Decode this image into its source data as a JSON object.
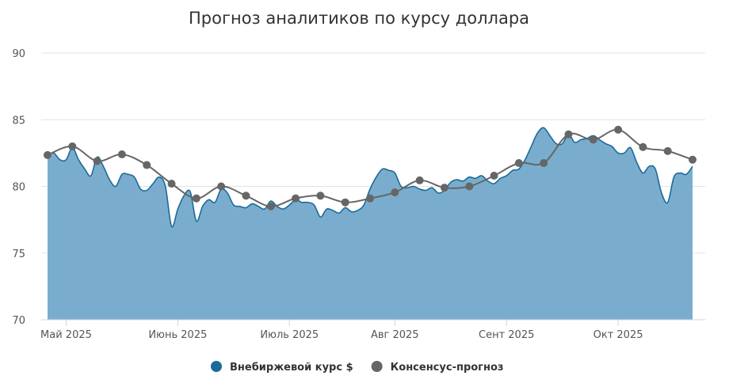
{
  "chart_data": {
    "type": "area-line",
    "title": "Прогноз аналитиков по курсу доллара",
    "categories": [
      null,
      null,
      null,
      "Май 2025",
      null,
      null,
      null,
      null,
      null,
      null,
      null,
      null,
      null,
      null,
      null,
      null,
      null,
      null,
      null,
      null,
      null,
      "Июнь 2025",
      null,
      null,
      null,
      null,
      null,
      null,
      null,
      null,
      null,
      null,
      null,
      null,
      null,
      null,
      null,
      null,
      null,
      "Июль 2025",
      null,
      null,
      null,
      null,
      null,
      null,
      null,
      null,
      null,
      null,
      null,
      null,
      null,
      null,
      null,
      null,
      "Авг 2025",
      null,
      null,
      null,
      null,
      null,
      null,
      null,
      null,
      null,
      null,
      null,
      null,
      null,
      null,
      null,
      null,
      null,
      "Сент 2025",
      null,
      null,
      null,
      null,
      null,
      null,
      null,
      null,
      null,
      null,
      null,
      null,
      null,
      null,
      null,
      null,
      null,
      "Окт 2025",
      null,
      null,
      null,
      null,
      null,
      null,
      null,
      null,
      null,
      null,
      null,
      null
    ],
    "series": [
      {
        "name": "Внебиржевой курс $",
        "color": "#1b6a9a",
        "fill": "#7aadcd",
        "style": "area",
        "values": [
          82.4,
          82.5,
          82.0,
          82.0,
          82.9,
          82.0,
          81.3,
          80.8,
          82.2,
          81.5,
          80.5,
          80.0,
          80.9,
          80.9,
          80.7,
          79.8,
          79.7,
          80.2,
          80.7,
          80.0,
          77.0,
          78.3,
          79.3,
          79.6,
          77.4,
          78.5,
          79.0,
          78.8,
          79.8,
          79.5,
          78.6,
          78.5,
          78.4,
          78.7,
          78.5,
          78.3,
          78.9,
          78.5,
          78.3,
          78.6,
          79.0,
          78.8,
          78.8,
          78.6,
          77.7,
          78.3,
          78.2,
          78.0,
          78.4,
          78.1,
          78.2,
          78.6,
          79.8,
          80.7,
          81.3,
          81.2,
          81.0,
          80.0,
          79.9,
          80.0,
          79.8,
          79.7,
          79.9,
          79.5,
          79.7,
          80.3,
          80.5,
          80.4,
          80.7,
          80.6,
          80.8,
          80.4,
          80.2,
          80.6,
          80.8,
          81.2,
          81.3,
          82.0,
          83.0,
          84.0,
          84.4,
          83.8,
          83.2,
          83.2,
          83.9,
          83.3,
          83.5,
          83.6,
          83.8,
          83.5,
          83.2,
          83.0,
          82.5,
          82.5,
          82.9,
          81.8,
          81.0,
          81.5,
          81.3,
          79.5,
          78.8,
          80.7,
          81.0,
          80.9,
          81.5
        ]
      },
      {
        "name": "Консенсус-прогноз",
        "color": "#666666",
        "style": "line-markers",
        "values": [
          82.35,
          null,
          null,
          null,
          83.0,
          null,
          null,
          null,
          81.9,
          null,
          null,
          null,
          82.4,
          null,
          null,
          null,
          81.6,
          null,
          null,
          null,
          80.2,
          null,
          null,
          null,
          79.1,
          null,
          null,
          null,
          80.0,
          null,
          null,
          null,
          79.3,
          null,
          null,
          null,
          78.5,
          null,
          null,
          null,
          79.1,
          null,
          null,
          null,
          79.3,
          null,
          null,
          null,
          78.8,
          null,
          null,
          null,
          79.1,
          null,
          null,
          null,
          79.55,
          null,
          null,
          null,
          80.45,
          null,
          null,
          null,
          79.9,
          null,
          null,
          null,
          80.0,
          null,
          null,
          null,
          80.8,
          null,
          null,
          null,
          81.75,
          null,
          null,
          null,
          81.75,
          null,
          null,
          null,
          83.9,
          null,
          null,
          null,
          83.5,
          null,
          null,
          null,
          84.25,
          null,
          null,
          null,
          82.95,
          null,
          null,
          null,
          82.65,
          null,
          null,
          null,
          82.0
        ]
      }
    ],
    "ylim": [
      70,
      90
    ],
    "yticks": [
      70,
      75,
      80,
      85,
      90
    ],
    "grid": true
  }
}
